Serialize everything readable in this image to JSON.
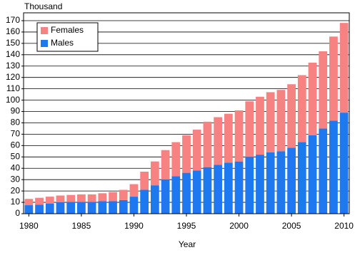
{
  "chart_data": {
    "type": "stacked-bar",
    "y_unit_label": "Thousand",
    "x_label": "Year",
    "x": [
      1980,
      1981,
      1982,
      1983,
      1984,
      1985,
      1986,
      1987,
      1988,
      1989,
      1990,
      1991,
      1992,
      1993,
      1994,
      1995,
      1996,
      1997,
      1998,
      1999,
      2000,
      2001,
      2002,
      2003,
      2004,
      2005,
      2006,
      2007,
      2008,
      2009,
      2010
    ],
    "series": [
      {
        "name": "Males",
        "color": "#1e78f0",
        "values": [
          7.5,
          8,
          9,
          10,
          10.5,
          10.5,
          10.5,
          11,
          11,
          12,
          15,
          21,
          25,
          30,
          33,
          36,
          38,
          41,
          43,
          45,
          46,
          50,
          52,
          54,
          55,
          58,
          63,
          69,
          75,
          82,
          89
        ]
      },
      {
        "name": "Females",
        "color": "#f78282",
        "values": [
          5.5,
          6,
          6,
          6,
          6,
          6.5,
          6.5,
          7,
          8,
          9,
          11,
          16,
          21,
          26,
          30,
          33,
          36,
          40,
          42,
          43,
          45,
          49,
          51,
          53,
          54,
          56,
          59,
          64,
          68,
          74,
          79
        ]
      }
    ],
    "xlim": [
      1979.5,
      2010.5
    ],
    "xticks": [
      1980,
      1985,
      1990,
      1995,
      2000,
      2005,
      2010
    ],
    "ylim": [
      0,
      170
    ],
    "yticks": [
      0,
      10,
      20,
      30,
      40,
      50,
      60,
      70,
      80,
      90,
      100,
      110,
      120,
      130,
      140,
      150,
      160,
      170
    ],
    "grid": true,
    "legend": "top-left"
  }
}
